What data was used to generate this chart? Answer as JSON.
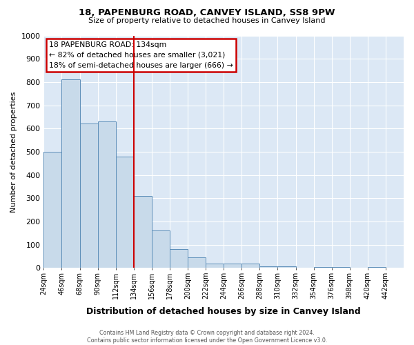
{
  "title": "18, PAPENBURG ROAD, CANVEY ISLAND, SS8 9PW",
  "subtitle": "Size of property relative to detached houses in Canvey Island",
  "xlabel": "Distribution of detached houses by size in Canvey Island",
  "ylabel": "Number of detached properties",
  "bar_edges": [
    24,
    46,
    68,
    90,
    112,
    134,
    156,
    178,
    200,
    222,
    244,
    266,
    288,
    310,
    332,
    354,
    376,
    398,
    420,
    442,
    464
  ],
  "bar_heights": [
    500,
    810,
    620,
    630,
    480,
    310,
    160,
    80,
    45,
    20,
    18,
    18,
    8,
    8,
    0,
    5,
    3,
    0,
    3,
    2
  ],
  "bar_color": "#c8daea",
  "bar_edge_color": "#5b8db8",
  "vline_x": 134,
  "vline_color": "#cc0000",
  "ylim": [
    0,
    1000
  ],
  "annotation_line1": "18 PAPENBURG ROAD: 134sqm",
  "annotation_line2": "← 82% of detached houses are smaller (3,021)",
  "annotation_line3": "18% of semi-detached houses are larger (666) →",
  "annotation_box_edge_color": "#cc0000",
  "footer_line1": "Contains HM Land Registry data © Crown copyright and database right 2024.",
  "footer_line2": "Contains public sector information licensed under the Open Government Licence v3.0.",
  "fig_bg_color": "#ffffff",
  "plot_bg_color": "#dce8f5",
  "grid_color": "#ffffff",
  "yticks": [
    0,
    100,
    200,
    300,
    400,
    500,
    600,
    700,
    800,
    900,
    1000
  ]
}
